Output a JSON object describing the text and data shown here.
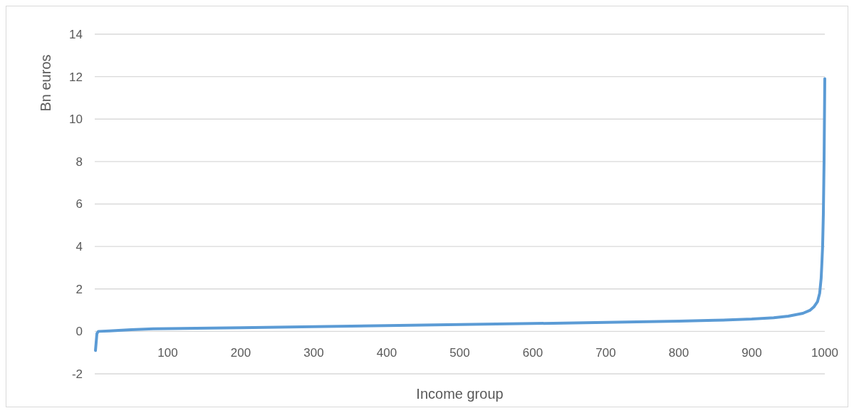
{
  "chart_data": {
    "type": "line",
    "xlabel": "Income group",
    "ylabel": "Bn euros",
    "xlim": [
      0,
      1000
    ],
    "xticks": [
      100,
      200,
      300,
      400,
      500,
      600,
      700,
      800,
      900,
      1000
    ],
    "ylim": [
      -2,
      14
    ],
    "yticks": [
      -2,
      0,
      2,
      4,
      6,
      8,
      10,
      12,
      14
    ],
    "grid": "y",
    "marker": "none",
    "line_style": "solid",
    "series": [
      {
        "color": "#5b9bd5",
        "x": [
          1,
          3,
          5,
          20,
          50,
          80,
          100,
          200,
          300,
          400,
          500,
          600,
          700,
          800,
          850,
          900,
          930,
          950,
          970,
          980,
          985,
          990,
          993,
          995,
          996,
          997,
          998,
          999,
          1000
        ],
        "values": [
          -0.9,
          -0.1,
          0,
          0.02,
          0.08,
          0.12,
          0.13,
          0.17,
          0.22,
          0.27,
          0.32,
          0.37,
          0.42,
          0.48,
          0.52,
          0.58,
          0.64,
          0.72,
          0.85,
          1.0,
          1.15,
          1.4,
          1.8,
          2.5,
          3.2,
          4.0,
          5.5,
          8,
          11.9
        ]
      }
    ]
  }
}
